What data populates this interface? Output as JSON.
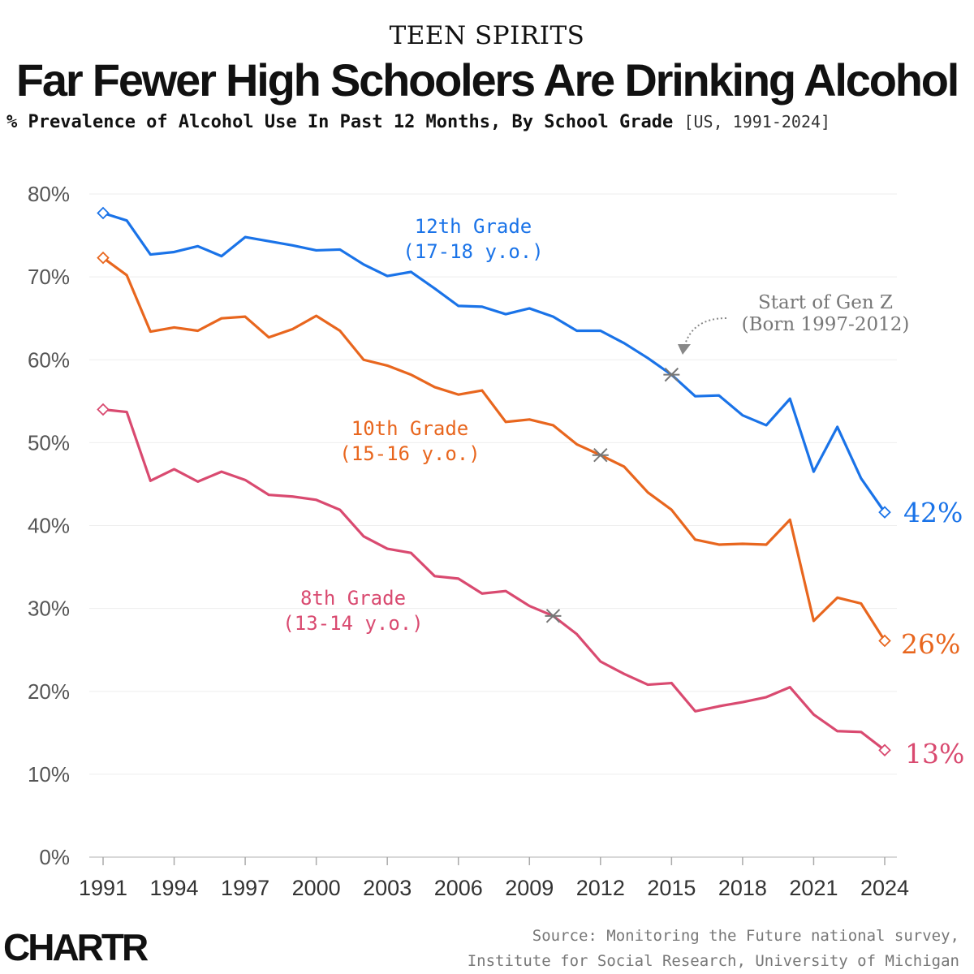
{
  "header": {
    "kicker": "TEEN SPIRITS",
    "title": "Far Fewer High Schoolers Are Drinking Alcohol",
    "subtitle_main": "% Prevalence of Alcohol Use In Past 12 Months, By School Grade",
    "subtitle_note": "[US, 1991-2024]"
  },
  "chart_data": {
    "type": "line",
    "title": "Far Fewer High Schoolers Are Drinking Alcohol",
    "subtitle": "% Prevalence of Alcohol Use In Past 12 Months, By School Grade [US, 1991-2024]",
    "xlabel": "",
    "ylabel": "",
    "x": [
      1991,
      1992,
      1993,
      1994,
      1995,
      1996,
      1997,
      1998,
      1999,
      2000,
      2001,
      2002,
      2003,
      2004,
      2005,
      2006,
      2007,
      2008,
      2009,
      2010,
      2011,
      2012,
      2013,
      2014,
      2015,
      2016,
      2017,
      2018,
      2019,
      2020,
      2021,
      2022,
      2023,
      2024
    ],
    "x_ticks": [
      1991,
      1994,
      1997,
      2000,
      2003,
      2006,
      2009,
      2012,
      2015,
      2018,
      2021,
      2024
    ],
    "y_ticks": [
      "0%",
      "10%",
      "20%",
      "30%",
      "40%",
      "50%",
      "60%",
      "70%",
      "80%"
    ],
    "ylim": [
      0,
      80
    ],
    "grid": true,
    "series": [
      {
        "label_line1": "12th Grade",
        "label_line2": "(17-18 y.o.)",
        "end_label": "42%",
        "color": "#1a73e8",
        "values": [
          77.7,
          76.8,
          72.7,
          73.0,
          73.7,
          72.5,
          74.8,
          74.3,
          73.8,
          73.2,
          73.3,
          71.5,
          70.1,
          70.6,
          68.6,
          66.5,
          66.4,
          65.5,
          66.2,
          65.2,
          63.5,
          63.5,
          62.0,
          60.2,
          58.2,
          55.6,
          55.7,
          53.3,
          52.1,
          55.3,
          46.5,
          51.9,
          45.7,
          41.6
        ],
        "marker_year": 2015,
        "marker_value": 58.2
      },
      {
        "label_line1": "10th Grade",
        "label_line2": "(15-16 y.o.)",
        "end_label": "26%",
        "color": "#e8661e",
        "values": [
          72.3,
          70.2,
          63.4,
          63.9,
          63.5,
          65.0,
          65.2,
          62.7,
          63.7,
          65.3,
          63.5,
          60.0,
          59.3,
          58.2,
          56.7,
          55.8,
          56.3,
          52.5,
          52.8,
          52.1,
          49.8,
          48.5,
          47.1,
          44.0,
          41.9,
          38.3,
          37.7,
          37.8,
          37.7,
          40.7,
          28.5,
          31.3,
          30.6,
          26.1
        ],
        "marker_year": 2012,
        "marker_value": 48.5
      },
      {
        "label_line1": "8th Grade",
        "label_line2": "(13-14 y.o.)",
        "end_label": "13%",
        "color": "#d94a70",
        "values": [
          54.0,
          53.7,
          45.4,
          46.8,
          45.3,
          46.5,
          45.5,
          43.7,
          43.5,
          43.1,
          41.9,
          38.7,
          37.2,
          36.7,
          33.9,
          33.6,
          31.8,
          32.1,
          30.3,
          29.1,
          26.9,
          23.6,
          22.1,
          20.8,
          21.0,
          17.6,
          18.2,
          18.7,
          19.3,
          20.5,
          17.2,
          15.2,
          15.1,
          12.9
        ],
        "marker_year": 2010,
        "marker_value": 29.1
      }
    ],
    "annotation_line1": "Start of Gen Z",
    "annotation_line2": "(Born 1997-2012)"
  },
  "footer": {
    "logo": "CHARTR",
    "source_line1": "Source: Monitoring the Future national survey,",
    "source_line2": "Institute for Social Research, University of Michigan"
  }
}
